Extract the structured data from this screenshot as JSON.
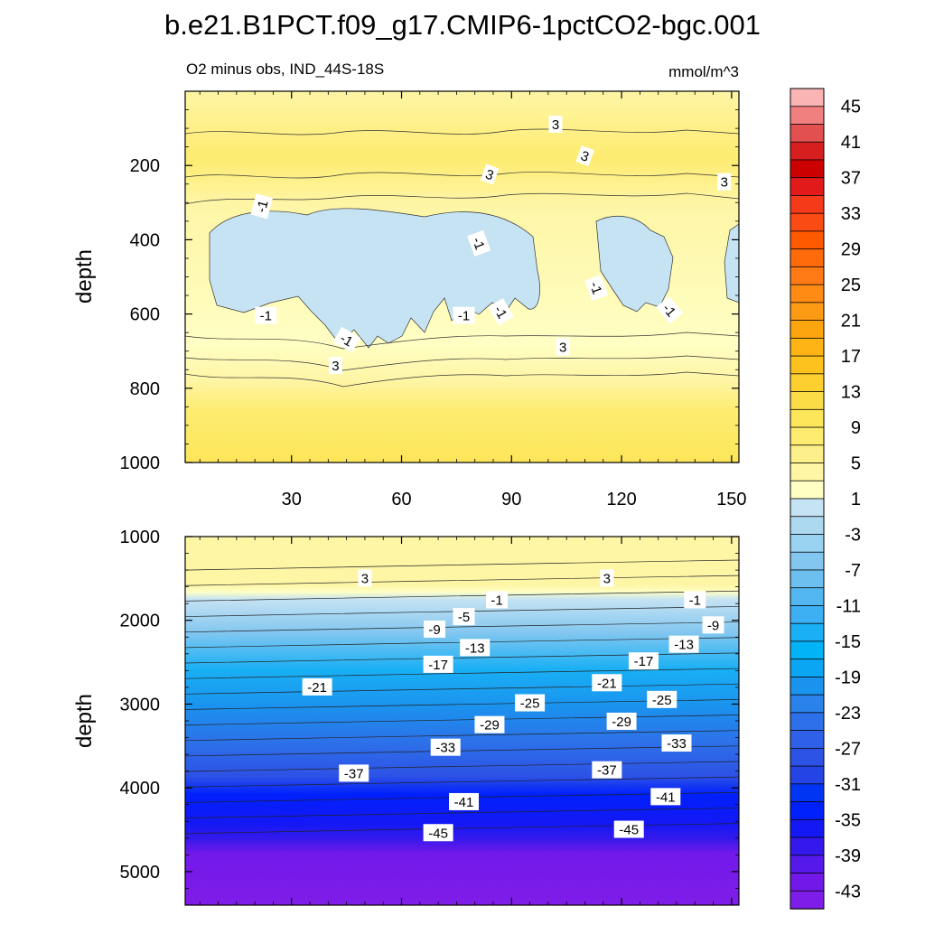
{
  "chart_data": {
    "type": "heatmap",
    "title": "b.e21.B1PCT.f09_g17.CMIP6-1pctCO2-bgc.001",
    "subtitle": "O2 minus obs, IND_44S-18S",
    "units": "mmol/m^3",
    "xlabel": "",
    "ylabel": "depth",
    "x_ticks": [
      "30",
      "60",
      "90",
      "120",
      "150"
    ],
    "xlim": [
      1,
      152
    ],
    "top_panel": {
      "ylim": [
        0,
        1000
      ],
      "y_ticks": [
        "200",
        "400",
        "600",
        "800",
        "1000"
      ],
      "depth_profile": [
        {
          "depth": 50,
          "value": 4
        },
        {
          "depth": 120,
          "value": 5
        },
        {
          "depth": 200,
          "value": 4
        },
        {
          "depth": 280,
          "value": 1
        },
        {
          "depth": 400,
          "value": -2
        },
        {
          "depth": 550,
          "value": -2
        },
        {
          "depth": 650,
          "value": 1
        },
        {
          "depth": 740,
          "value": 4
        },
        {
          "depth": 900,
          "value": 6
        }
      ],
      "contour_labels": [
        {
          "x": 102,
          "depth": 90,
          "text": "3"
        },
        {
          "x": 110,
          "depth": 175,
          "text": "3"
        },
        {
          "x": 84,
          "depth": 225,
          "text": "3"
        },
        {
          "x": 148,
          "depth": 245,
          "text": "3"
        },
        {
          "x": 22,
          "depth": 310,
          "text": "-1"
        },
        {
          "x": 81,
          "depth": 410,
          "text": "-1"
        },
        {
          "x": 113,
          "depth": 530,
          "text": "-1"
        },
        {
          "x": 133,
          "depth": 590,
          "text": "-1"
        },
        {
          "x": 23,
          "depth": 605,
          "text": "-1"
        },
        {
          "x": 77,
          "depth": 605,
          "text": "-1"
        },
        {
          "x": 87,
          "depth": 595,
          "text": "-1"
        },
        {
          "x": 45,
          "depth": 670,
          "text": "-1"
        },
        {
          "x": 104,
          "depth": 690,
          "text": "3"
        },
        {
          "x": 42,
          "depth": 740,
          "text": "3"
        }
      ]
    },
    "bottom_panel": {
      "ylim": [
        1000,
        5400
      ],
      "y_ticks": [
        "1000",
        "2000",
        "3000",
        "4000",
        "5000"
      ],
      "contour_labels": [
        {
          "x": 50,
          "depth": 1500,
          "text": "3"
        },
        {
          "x": 116,
          "depth": 1500,
          "text": "3"
        },
        {
          "x": 86,
          "depth": 1760,
          "text": "-1"
        },
        {
          "x": 140,
          "depth": 1760,
          "text": "-1"
        },
        {
          "x": 77,
          "depth": 1960,
          "text": "-5"
        },
        {
          "x": 69,
          "depth": 2110,
          "text": "-9"
        },
        {
          "x": 145,
          "depth": 2060,
          "text": "-9"
        },
        {
          "x": 80,
          "depth": 2330,
          "text": "-13"
        },
        {
          "x": 137,
          "depth": 2290,
          "text": "-13"
        },
        {
          "x": 70,
          "depth": 2530,
          "text": "-17"
        },
        {
          "x": 126,
          "depth": 2490,
          "text": "-17"
        },
        {
          "x": 37,
          "depth": 2800,
          "text": "-21"
        },
        {
          "x": 116,
          "depth": 2750,
          "text": "-21"
        },
        {
          "x": 95,
          "depth": 2990,
          "text": "-25"
        },
        {
          "x": 131,
          "depth": 2950,
          "text": "-25"
        },
        {
          "x": 84,
          "depth": 3250,
          "text": "-29"
        },
        {
          "x": 120,
          "depth": 3210,
          "text": "-29"
        },
        {
          "x": 72,
          "depth": 3520,
          "text": "-33"
        },
        {
          "x": 135,
          "depth": 3470,
          "text": "-33"
        },
        {
          "x": 47,
          "depth": 3830,
          "text": "-37"
        },
        {
          "x": 116,
          "depth": 3790,
          "text": "-37"
        },
        {
          "x": 77,
          "depth": 4170,
          "text": "-41"
        },
        {
          "x": 132,
          "depth": 4110,
          "text": "-41"
        },
        {
          "x": 70,
          "depth": 4540,
          "text": "-45"
        },
        {
          "x": 122,
          "depth": 4500,
          "text": "-45"
        }
      ]
    },
    "colorbar": {
      "labels": [
        "45",
        "41",
        "37",
        "33",
        "29",
        "25",
        "21",
        "17",
        "13",
        "9",
        "5",
        "1",
        "-3",
        "-7",
        "-11",
        "-15",
        "-19",
        "-23",
        "-27",
        "-31",
        "-35",
        "-39",
        "-43"
      ],
      "colors": [
        "#fbb4b4",
        "#f08080",
        "#e25050",
        "#d81f1f",
        "#cd0000",
        "#e31a1a",
        "#f53a1a",
        "#fa4b14",
        "#ff5a00",
        "#ff6a0a",
        "#ff7a14",
        "#ff8a14",
        "#fc9a14",
        "#fda50f",
        "#fdb414",
        "#fdc21e",
        "#fdd030",
        "#fcdc46",
        "#fde65a",
        "#fdec70",
        "#fdf08a",
        "#fef5a5",
        "#ffffc4",
        "#c6e3f3",
        "#acd9f0",
        "#9ad2f1",
        "#83c7f0",
        "#6cc0f0",
        "#52b7f0",
        "#3cb0f3",
        "#19b0f5",
        "#02b4f7",
        "#0aa6f3",
        "#1a93ee",
        "#2a82eb",
        "#2d70e9",
        "#2e61e8",
        "#2d52e6",
        "#2444e6",
        "#0036f3",
        "#0020fc",
        "#1418f5",
        "#3519ec",
        "#5519eb",
        "#7219ea",
        "#7f1de8"
      ]
    }
  }
}
